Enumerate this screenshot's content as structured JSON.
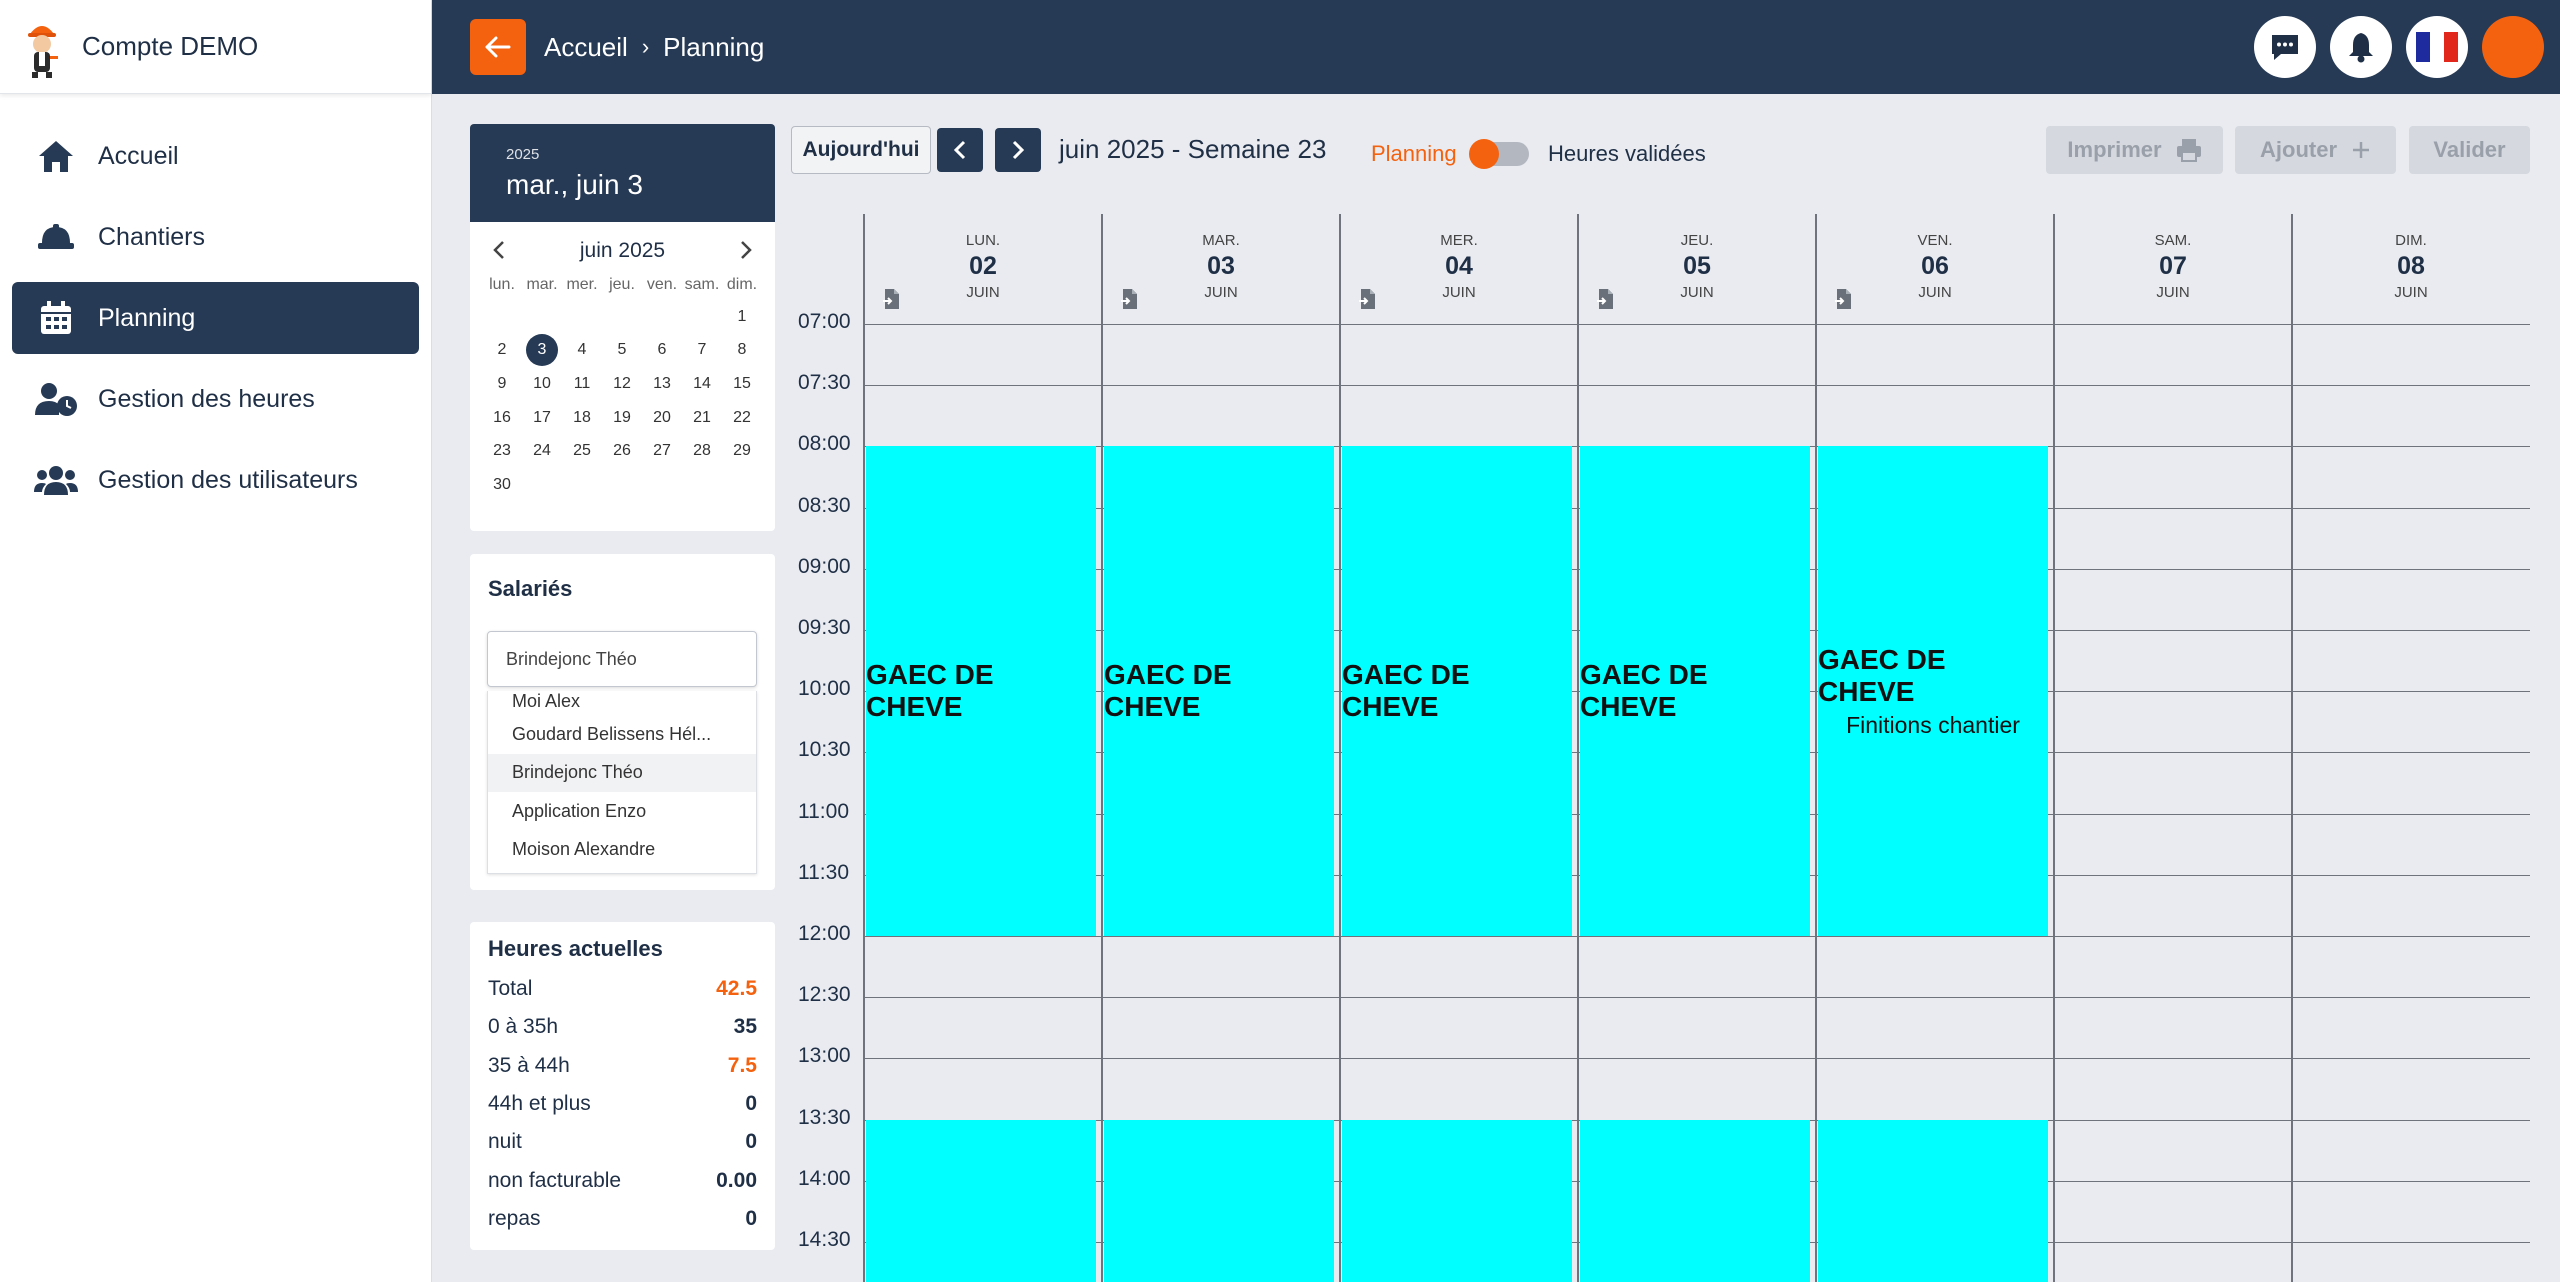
{
  "brand": {
    "name": "Compte DEMO"
  },
  "sidebar": {
    "items": [
      {
        "label": "Accueil",
        "icon": "home-icon"
      },
      {
        "label": "Chantiers",
        "icon": "hardhat-icon"
      },
      {
        "label": "Planning",
        "icon": "calendar-icon",
        "active": true
      },
      {
        "label": "Gestion des heures",
        "icon": "user-clock-icon"
      },
      {
        "label": "Gestion des utilisateurs",
        "icon": "users-icon"
      }
    ]
  },
  "header": {
    "crumb_home": "Accueil",
    "crumb_sep": "›",
    "crumb_current": "Planning",
    "accent": "#f5620f",
    "bg": "#263a55"
  },
  "datepicker": {
    "year": "2025",
    "date": "mar., juin 3",
    "month": "juin 2025",
    "weekdays": [
      "lun.",
      "mar.",
      "mer.",
      "jeu.",
      "ven.",
      "sam.",
      "dim."
    ],
    "days": [
      "1",
      "2",
      "3",
      "4",
      "5",
      "6",
      "7",
      "8",
      "9",
      "10",
      "11",
      "12",
      "13",
      "14",
      "15",
      "16",
      "17",
      "18",
      "19",
      "20",
      "21",
      "22",
      "23",
      "24",
      "25",
      "26",
      "27",
      "28",
      "29",
      "30"
    ],
    "selected": "3"
  },
  "employees": {
    "title": "Salariés",
    "selected": "Brindejonc Théo",
    "options": [
      "Moi Alex",
      "Goudard Belissens Hél...",
      "Brindejonc Théo",
      "Application Enzo",
      "Moison Alexandre"
    ]
  },
  "hours": {
    "title": "Heures actuelles",
    "rows": [
      {
        "label": "Total",
        "value": "42.5",
        "highlight": true
      },
      {
        "label": "0 à 35h",
        "value": "35",
        "highlight": false
      },
      {
        "label": "35 à 44h",
        "value": "7.5",
        "highlight": true
      },
      {
        "label": "44h et plus",
        "value": "0",
        "highlight": false
      },
      {
        "label": "nuit",
        "value": "0",
        "highlight": false
      },
      {
        "label": "non facturable",
        "value": "0.00",
        "highlight": false
      },
      {
        "label": "repas",
        "value": "0",
        "highlight": false
      }
    ]
  },
  "toolbar": {
    "today": "Aujourd'hui",
    "week": "juin 2025 - Semaine 23",
    "mode_planning": "Planning",
    "mode_validated": "Heures validées",
    "print": "Imprimer",
    "add": "Ajouter",
    "validate": "Valider"
  },
  "calendar": {
    "days": [
      {
        "name": "LUN.",
        "num": "02",
        "month": "JUIN",
        "has_add": true
      },
      {
        "name": "MAR.",
        "num": "03",
        "month": "JUIN",
        "has_add": true
      },
      {
        "name": "MER.",
        "num": "04",
        "month": "JUIN",
        "has_add": true
      },
      {
        "name": "JEU.",
        "num": "05",
        "month": "JUIN",
        "has_add": true
      },
      {
        "name": "VEN.",
        "num": "06",
        "month": "JUIN",
        "has_add": true
      },
      {
        "name": "SAM.",
        "num": "07",
        "month": "JUIN",
        "has_add": false
      },
      {
        "name": "DIM.",
        "num": "08",
        "month": "JUIN",
        "has_add": false
      }
    ],
    "times": [
      "07:00",
      "07:30",
      "08:00",
      "08:30",
      "09:00",
      "09:30",
      "10:00",
      "10:30",
      "11:00",
      "11:30",
      "12:00",
      "12:30",
      "13:00",
      "13:30",
      "14:00",
      "14:30"
    ],
    "event_color": "#00ffff",
    "events": [
      {
        "day": 0,
        "start": "08:00",
        "end": "12:00",
        "title": "GAEC DE CHEVE",
        "subtitle": ""
      },
      {
        "day": 1,
        "start": "08:00",
        "end": "12:00",
        "title": "GAEC DE CHEVE",
        "subtitle": ""
      },
      {
        "day": 2,
        "start": "08:00",
        "end": "12:00",
        "title": "GAEC DE CHEVE",
        "subtitle": ""
      },
      {
        "day": 3,
        "start": "08:00",
        "end": "12:00",
        "title": "GAEC DE CHEVE",
        "subtitle": ""
      },
      {
        "day": 4,
        "start": "08:00",
        "end": "12:00",
        "title": "GAEC DE CHEVE",
        "subtitle": "Finitions chantier"
      },
      {
        "day": 0,
        "start": "13:30",
        "end": "14:30",
        "title": "",
        "subtitle": ""
      },
      {
        "day": 1,
        "start": "13:30",
        "end": "14:30",
        "title": "",
        "subtitle": ""
      },
      {
        "day": 2,
        "start": "13:30",
        "end": "14:30",
        "title": "",
        "subtitle": ""
      },
      {
        "day": 3,
        "start": "13:30",
        "end": "14:30",
        "title": "",
        "subtitle": ""
      },
      {
        "day": 4,
        "start": "13:30",
        "end": "14:30",
        "title": "",
        "subtitle": ""
      }
    ]
  }
}
